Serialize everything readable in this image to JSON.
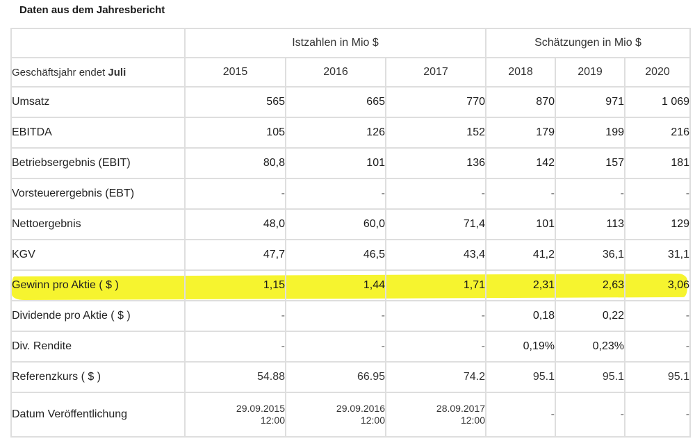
{
  "title": "Daten aus dem Jahresbericht",
  "header": {
    "fiscal_label_prefix": "Geschäftsjahr endet ",
    "fiscal_label_month": "Juli",
    "actual_group": "Istzahlen in Mio $",
    "estimate_group": "Schätzungen in Mio $",
    "years": [
      "2015",
      "2016",
      "2017",
      "2018",
      "2019",
      "2020"
    ]
  },
  "rows": [
    {
      "label": "Umsatz",
      "values": [
        "565",
        "665",
        "770",
        "870",
        "971",
        "1 069"
      ]
    },
    {
      "label": "EBITDA",
      "values": [
        "105",
        "126",
        "152",
        "179",
        "199",
        "216"
      ]
    },
    {
      "label": "Betriebsergebnis (EBIT)",
      "values": [
        "80,8",
        "101",
        "136",
        "142",
        "157",
        "181"
      ]
    },
    {
      "label": "Vorsteuerergebnis (EBT)",
      "values": [
        "-",
        "-",
        "-",
        "-",
        "-",
        "-"
      ]
    },
    {
      "label": "Nettoergebnis",
      "values": [
        "48,0",
        "60,0",
        "71,4",
        "101",
        "113",
        "129"
      ]
    },
    {
      "label": "KGV",
      "values": [
        "47,7",
        "46,5",
        "43,4",
        "41,2",
        "36,1",
        "31,1"
      ]
    },
    {
      "label": "Gewinn pro Aktie ( $ )",
      "values": [
        "1,15",
        "1,44",
        "1,71",
        "2,31",
        "2,63",
        "3,06"
      ],
      "highlighted": true
    },
    {
      "label": "Dividende pro Aktie ( $ )",
      "values": [
        "-",
        "-",
        "-",
        "0,18",
        "0,22",
        "-"
      ]
    },
    {
      "label": "Div. Rendite",
      "values": [
        "-",
        "-",
        "-",
        "0,19%",
        "0,23%",
        "-"
      ]
    },
    {
      "label": "Referenzkurs ( $ )",
      "values": [
        "54.88",
        "66.95",
        "74.2",
        "95.1",
        "95.1",
        "95.1"
      ]
    },
    {
      "label": "Datum Veröffentlichung",
      "values": [
        {
          "date": "29.09.2015",
          "time": "12:00"
        },
        {
          "date": "29.09.2016",
          "time": "12:00"
        },
        {
          "date": "28.09.2017",
          "time": "12:00"
        },
        "-",
        "-",
        "-"
      ]
    }
  ],
  "colors": {
    "highlight": "#f4f20a",
    "grid": "#dedede"
  }
}
